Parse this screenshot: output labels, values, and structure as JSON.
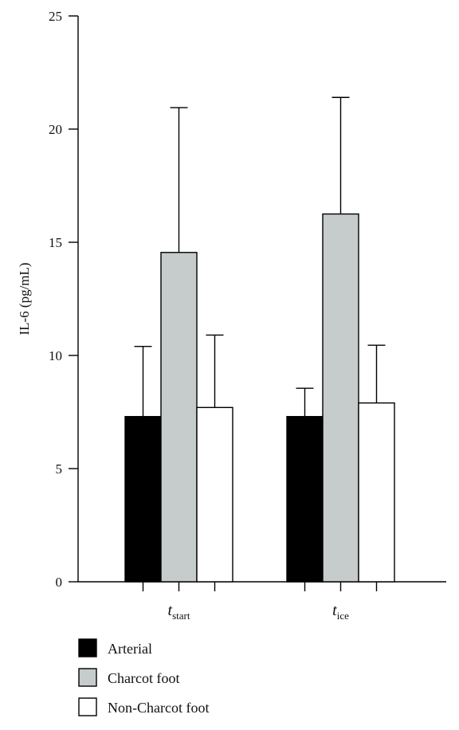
{
  "chart_data": {
    "type": "bar",
    "ylabel": "IL-6 (pg/mL)",
    "ylim": [
      0,
      25
    ],
    "yticks": [
      0,
      5,
      10,
      15,
      20,
      25
    ],
    "categories": [
      {
        "base": "t",
        "sub": "start"
      },
      {
        "base": "t",
        "sub": "ice"
      }
    ],
    "series": [
      {
        "name": "Arterial",
        "color": "#000000",
        "values": [
          7.3,
          7.3
        ],
        "errors": [
          3.1,
          1.25
        ]
      },
      {
        "name": "Charcot foot",
        "color": "#c6cccb",
        "values": [
          14.55,
          16.25
        ],
        "errors": [
          6.4,
          5.15
        ]
      },
      {
        "name": "Non-Charcot foot",
        "color": "#ffffff",
        "values": [
          7.7,
          7.9
        ],
        "errors": [
          3.2,
          2.55
        ]
      }
    ],
    "legend_position": "bottom-left",
    "grid": false
  }
}
